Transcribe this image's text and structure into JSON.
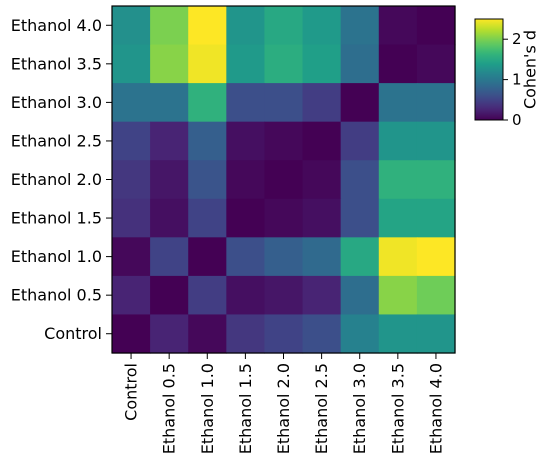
{
  "chart_data": {
    "type": "heatmap",
    "title": "",
    "xlabel": "",
    "ylabel": "",
    "x_categories": [
      "Control",
      "Ethanol 0.5",
      "Ethanol 1.0",
      "Ethanol 1.5",
      "Ethanol 2.0",
      "Ethanol 2.5",
      "Ethanol 3.0",
      "Ethanol 3.5",
      "Ethanol 4.0"
    ],
    "y_categories": [
      "Ethanol 4.0",
      "Ethanol 3.5",
      "Ethanol 3.0",
      "Ethanol 2.5",
      "Ethanol 2.0",
      "Ethanol 1.5",
      "Ethanol 1.0",
      "Ethanol 0.5",
      "Control"
    ],
    "values": [
      [
        1.25,
        2.0,
        2.5,
        1.3,
        1.5,
        1.35,
        0.95,
        0.05,
        0.0
      ],
      [
        1.3,
        2.05,
        2.45,
        1.35,
        1.55,
        1.4,
        0.9,
        0.0,
        0.05
      ],
      [
        0.95,
        0.95,
        1.6,
        0.6,
        0.6,
        0.45,
        0.0,
        0.95,
        0.95
      ],
      [
        0.5,
        0.25,
        0.75,
        0.1,
        0.05,
        0.0,
        0.45,
        1.3,
        1.3
      ],
      [
        0.4,
        0.15,
        0.65,
        0.05,
        0.0,
        0.05,
        0.6,
        1.6,
        1.6
      ],
      [
        0.35,
        0.1,
        0.5,
        0.0,
        0.05,
        0.1,
        0.6,
        1.45,
        1.45
      ],
      [
        0.05,
        0.5,
        0.0,
        0.6,
        0.75,
        0.85,
        1.5,
        2.45,
        2.5
      ],
      [
        0.25,
        0.0,
        0.45,
        0.1,
        0.15,
        0.25,
        0.9,
        2.05,
        1.95
      ],
      [
        0.0,
        0.25,
        0.05,
        0.4,
        0.5,
        0.6,
        1.1,
        1.3,
        1.3
      ]
    ],
    "colorbar": {
      "label": "Cohen's d",
      "min": 0,
      "max": 2.5,
      "ticks": [
        0,
        1,
        2
      ],
      "colormap": "viridis"
    }
  }
}
